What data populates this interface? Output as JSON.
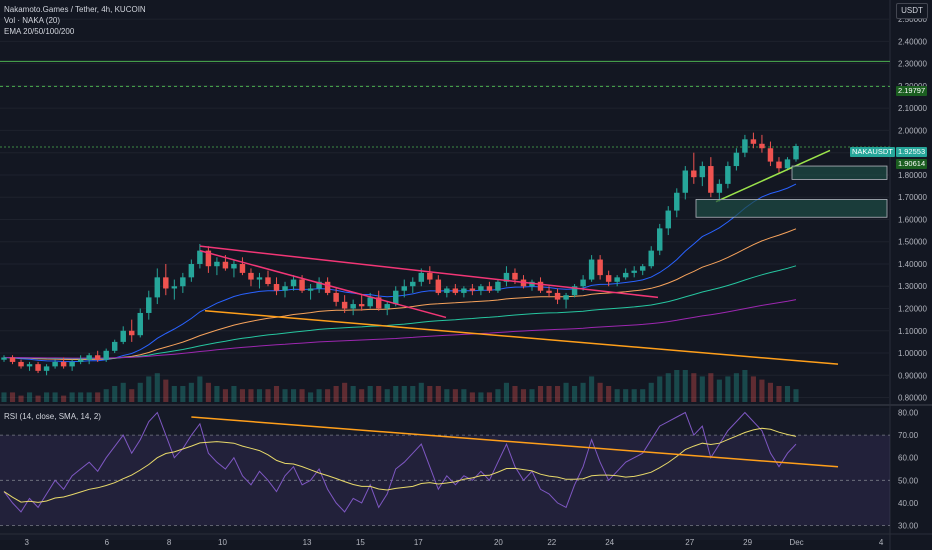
{
  "legend": {
    "title": "Nakamoto.Games / Tether, 4h, KUCOIN",
    "vol": "Vol · NAKA (20)",
    "ema": "EMA 20/50/100/200",
    "rsi": "RSI (14, close, SMA, 14, 2)"
  },
  "currency_button": "USDT",
  "price_scale_labels": [
    "2.50000",
    "2.40000",
    "2.30000",
    "2.20000",
    "2.10000",
    "2.00000",
    "1.90000",
    "1.80000",
    "1.70000",
    "1.60000",
    "1.50000",
    "1.40000",
    "1.30000",
    "1.20000",
    "1.10000",
    "1.00000",
    "0.90000",
    "0.80000"
  ],
  "rsi_scale_labels": [
    "80.00",
    "70.00",
    "60.00",
    "50.00",
    "40.00",
    "30.00"
  ],
  "time_labels": [
    "3",
    "6",
    "8",
    "10",
    "13",
    "15",
    "17",
    "20",
    "22",
    "24",
    "27",
    "29",
    "Dec",
    "4"
  ],
  "price_tags": {
    "level": "2.19797",
    "symbol": "NAKAUSDT",
    "last": "1.92553",
    "ema_value": "1.90614"
  },
  "colors": {
    "background": "#131722",
    "up": "#26a69a",
    "down": "#ef5350",
    "ema20": "#2962ff",
    "ema50": "#f7a35c",
    "ema100": "#26c6a0",
    "ema200": "#9c27b0",
    "rsi_line": "#7e57c2",
    "rsi_ma": "#e8d96a",
    "level_green": "#4caf50",
    "trend_pink": "#f23676",
    "trend_orange": "#ff9f1a",
    "trend_lime": "#9be34b"
  },
  "chart_data": {
    "type": "candlestick",
    "title": "Nakamoto.Games / Tether, 4h, KUCOIN",
    "ylim": [
      0.78,
      2.55
    ],
    "rsi_ylim": [
      28,
      82
    ],
    "candles": [
      [
        0.97,
        0.99,
        0.96,
        0.98
      ],
      [
        0.98,
        0.99,
        0.95,
        0.96
      ],
      [
        0.96,
        0.97,
        0.93,
        0.94
      ],
      [
        0.94,
        0.96,
        0.92,
        0.95
      ],
      [
        0.95,
        0.96,
        0.91,
        0.92
      ],
      [
        0.92,
        0.95,
        0.9,
        0.94
      ],
      [
        0.94,
        0.97,
        0.93,
        0.96
      ],
      [
        0.96,
        0.98,
        0.93,
        0.94
      ],
      [
        0.94,
        0.97,
        0.92,
        0.96
      ],
      [
        0.96,
        0.99,
        0.95,
        0.97
      ],
      [
        0.97,
        1.0,
        0.95,
        0.99
      ],
      [
        0.99,
        1.01,
        0.96,
        0.97
      ],
      [
        0.97,
        1.02,
        0.96,
        1.01
      ],
      [
        1.01,
        1.06,
        1.0,
        1.05
      ],
      [
        1.05,
        1.12,
        1.04,
        1.1
      ],
      [
        1.1,
        1.15,
        1.05,
        1.08
      ],
      [
        1.08,
        1.2,
        1.07,
        1.18
      ],
      [
        1.18,
        1.28,
        1.15,
        1.25
      ],
      [
        1.25,
        1.38,
        1.22,
        1.34
      ],
      [
        1.34,
        1.4,
        1.26,
        1.29
      ],
      [
        1.29,
        1.33,
        1.24,
        1.3
      ],
      [
        1.3,
        1.36,
        1.27,
        1.34
      ],
      [
        1.34,
        1.42,
        1.32,
        1.4
      ],
      [
        1.4,
        1.49,
        1.38,
        1.46
      ],
      [
        1.46,
        1.48,
        1.36,
        1.39
      ],
      [
        1.39,
        1.43,
        1.35,
        1.41
      ],
      [
        1.41,
        1.44,
        1.37,
        1.38
      ],
      [
        1.38,
        1.42,
        1.34,
        1.4
      ],
      [
        1.4,
        1.43,
        1.35,
        1.36
      ],
      [
        1.36,
        1.38,
        1.3,
        1.33
      ],
      [
        1.33,
        1.36,
        1.29,
        1.34
      ],
      [
        1.34,
        1.37,
        1.3,
        1.31
      ],
      [
        1.31,
        1.34,
        1.26,
        1.28
      ],
      [
        1.28,
        1.32,
        1.25,
        1.3
      ],
      [
        1.3,
        1.35,
        1.28,
        1.33
      ],
      [
        1.33,
        1.35,
        1.27,
        1.28
      ],
      [
        1.28,
        1.31,
        1.24,
        1.29
      ],
      [
        1.29,
        1.34,
        1.27,
        1.32
      ],
      [
        1.32,
        1.34,
        1.26,
        1.27
      ],
      [
        1.27,
        1.29,
        1.21,
        1.23
      ],
      [
        1.23,
        1.26,
        1.18,
        1.2
      ],
      [
        1.2,
        1.24,
        1.17,
        1.22
      ],
      [
        1.22,
        1.26,
        1.19,
        1.21
      ],
      [
        1.21,
        1.27,
        1.2,
        1.25
      ],
      [
        1.25,
        1.28,
        1.19,
        1.2
      ],
      [
        1.2,
        1.23,
        1.17,
        1.22
      ],
      [
        1.22,
        1.3,
        1.21,
        1.28
      ],
      [
        1.28,
        1.33,
        1.25,
        1.3
      ],
      [
        1.3,
        1.34,
        1.27,
        1.32
      ],
      [
        1.32,
        1.38,
        1.3,
        1.36
      ],
      [
        1.36,
        1.39,
        1.31,
        1.33
      ],
      [
        1.33,
        1.35,
        1.26,
        1.27
      ],
      [
        1.27,
        1.3,
        1.25,
        1.29
      ],
      [
        1.29,
        1.31,
        1.26,
        1.27
      ],
      [
        1.27,
        1.3,
        1.25,
        1.29
      ],
      [
        1.29,
        1.31,
        1.26,
        1.28
      ],
      [
        1.28,
        1.31,
        1.26,
        1.3
      ],
      [
        1.3,
        1.32,
        1.27,
        1.28
      ],
      [
        1.28,
        1.33,
        1.27,
        1.32
      ],
      [
        1.32,
        1.39,
        1.3,
        1.36
      ],
      [
        1.36,
        1.38,
        1.31,
        1.33
      ],
      [
        1.33,
        1.35,
        1.29,
        1.3
      ],
      [
        1.3,
        1.33,
        1.28,
        1.32
      ],
      [
        1.32,
        1.34,
        1.27,
        1.28
      ],
      [
        1.28,
        1.3,
        1.25,
        1.27
      ],
      [
        1.27,
        1.29,
        1.22,
        1.24
      ],
      [
        1.24,
        1.27,
        1.2,
        1.26
      ],
      [
        1.26,
        1.31,
        1.25,
        1.3
      ],
      [
        1.3,
        1.35,
        1.28,
        1.33
      ],
      [
        1.33,
        1.44,
        1.32,
        1.42
      ],
      [
        1.42,
        1.44,
        1.33,
        1.35
      ],
      [
        1.35,
        1.37,
        1.3,
        1.32
      ],
      [
        1.32,
        1.35,
        1.3,
        1.34
      ],
      [
        1.34,
        1.38,
        1.33,
        1.36
      ],
      [
        1.36,
        1.39,
        1.34,
        1.37
      ],
      [
        1.37,
        1.4,
        1.35,
        1.39
      ],
      [
        1.39,
        1.48,
        1.38,
        1.46
      ],
      [
        1.46,
        1.58,
        1.44,
        1.56
      ],
      [
        1.56,
        1.66,
        1.53,
        1.64
      ],
      [
        1.64,
        1.74,
        1.61,
        1.72
      ],
      [
        1.72,
        1.84,
        1.69,
        1.82
      ],
      [
        1.82,
        1.9,
        1.76,
        1.79
      ],
      [
        1.79,
        1.86,
        1.75,
        1.84
      ],
      [
        1.84,
        1.88,
        1.7,
        1.72
      ],
      [
        1.72,
        1.78,
        1.68,
        1.76
      ],
      [
        1.76,
        1.86,
        1.74,
        1.84
      ],
      [
        1.84,
        1.92,
        1.82,
        1.9
      ],
      [
        1.9,
        1.98,
        1.88,
        1.96
      ],
      [
        1.96,
        1.99,
        1.92,
        1.94
      ],
      [
        1.94,
        1.98,
        1.9,
        1.92
      ],
      [
        1.92,
        1.95,
        1.84,
        1.86
      ],
      [
        1.86,
        1.88,
        1.81,
        1.83
      ],
      [
        1.83,
        1.88,
        1.82,
        1.87
      ],
      [
        1.87,
        1.94,
        1.86,
        1.93
      ]
    ],
    "rsi": [
      45,
      40,
      36,
      42,
      38,
      44,
      50,
      46,
      52,
      55,
      58,
      54,
      60,
      65,
      70,
      62,
      68,
      76,
      80,
      70,
      60,
      64,
      70,
      75,
      62,
      58,
      55,
      60,
      52,
      48,
      54,
      50,
      45,
      52,
      56,
      48,
      50,
      55,
      46,
      40,
      36,
      42,
      40,
      48,
      38,
      44,
      55,
      58,
      62,
      66,
      56,
      46,
      52,
      48,
      52,
      50,
      54,
      50,
      58,
      66,
      56,
      50,
      54,
      46,
      44,
      40,
      38,
      48,
      56,
      68,
      58,
      50,
      54,
      58,
      60,
      62,
      68,
      74,
      76,
      78,
      80,
      70,
      74,
      60,
      66,
      72,
      76,
      80,
      76,
      72,
      62,
      56,
      62,
      66
    ],
    "volume": [
      3,
      3,
      2,
      3,
      2,
      3,
      3,
      2,
      3,
      3,
      3,
      3,
      4,
      5,
      6,
      4,
      6,
      8,
      9,
      7,
      5,
      5,
      6,
      8,
      6,
      5,
      4,
      5,
      4,
      4,
      4,
      4,
      5,
      4,
      4,
      4,
      3,
      4,
      4,
      5,
      6,
      5,
      4,
      5,
      5,
      4,
      5,
      5,
      5,
      6,
      5,
      5,
      4,
      4,
      4,
      3,
      3,
      3,
      4,
      6,
      5,
      4,
      4,
      5,
      5,
      5,
      6,
      5,
      6,
      8,
      6,
      5,
      4,
      4,
      4,
      4,
      6,
      8,
      9,
      10,
      10,
      9,
      8,
      9,
      7,
      8,
      9,
      10,
      8,
      7,
      6,
      5,
      5,
      4
    ]
  }
}
